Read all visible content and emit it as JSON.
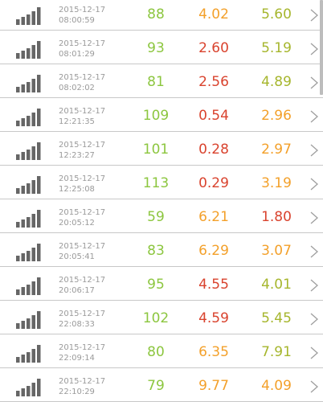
{
  "colors": {
    "green": "#8cc63f",
    "orange": "#f3a02a",
    "red": "#d9432e",
    "olive": "#a6b62d",
    "timestamp": "#9a9a9a",
    "signal": "#666666",
    "chevron": "#9e9e9e",
    "divider": "#c8c8c8"
  },
  "rows": [
    {
      "date": "2015-12-17",
      "time": "08:00:59",
      "v1": "88",
      "v2": "4.02",
      "v3": "5.60",
      "c1": "green",
      "c2": "orange",
      "c3": "olive",
      "icon": "signal-bars-icon"
    },
    {
      "date": "2015-12-17",
      "time": "08:01:29",
      "v1": "93",
      "v2": "2.60",
      "v3": "5.19",
      "c1": "green",
      "c2": "red",
      "c3": "olive",
      "icon": "signal-bars-icon"
    },
    {
      "date": "2015-12-17",
      "time": "08:02:02",
      "v1": "81",
      "v2": "2.56",
      "v3": "4.89",
      "c1": "green",
      "c2": "red",
      "c3": "olive",
      "icon": "signal-bars-icon"
    },
    {
      "date": "2015-12-17",
      "time": "12:21:35",
      "v1": "109",
      "v2": "0.54",
      "v3": "2.96",
      "c1": "green",
      "c2": "red",
      "c3": "orange",
      "icon": "signal-bars-icon"
    },
    {
      "date": "2015-12-17",
      "time": "12:23:27",
      "v1": "101",
      "v2": "0.28",
      "v3": "2.97",
      "c1": "green",
      "c2": "red",
      "c3": "orange",
      "icon": "signal-bars-icon"
    },
    {
      "date": "2015-12-17",
      "time": "12:25:08",
      "v1": "113",
      "v2": "0.29",
      "v3": "3.19",
      "c1": "green",
      "c2": "red",
      "c3": "orange",
      "icon": "signal-bars-icon"
    },
    {
      "date": "2015-12-17",
      "time": "20:05:12",
      "v1": "59",
      "v2": "6.21",
      "v3": "1.80",
      "c1": "green",
      "c2": "orange",
      "c3": "red",
      "icon": "signal-bars-icon"
    },
    {
      "date": "2015-12-17",
      "time": "20:05:41",
      "v1": "83",
      "v2": "6.29",
      "v3": "3.07",
      "c1": "green",
      "c2": "orange",
      "c3": "orange",
      "icon": "signal-bars-icon"
    },
    {
      "date": "2015-12-17",
      "time": "20:06:17",
      "v1": "95",
      "v2": "4.55",
      "v3": "4.01",
      "c1": "green",
      "c2": "red",
      "c3": "olive",
      "icon": "signal-bars-icon"
    },
    {
      "date": "2015-12-17",
      "time": "22:08:33",
      "v1": "102",
      "v2": "4.59",
      "v3": "5.45",
      "c1": "green",
      "c2": "red",
      "c3": "olive",
      "icon": "signal-bars-icon"
    },
    {
      "date": "2015-12-17",
      "time": "22:09:14",
      "v1": "80",
      "v2": "6.35",
      "v3": "7.91",
      "c1": "green",
      "c2": "orange",
      "c3": "olive",
      "icon": "signal-bars-icon"
    },
    {
      "date": "2015-12-17",
      "time": "22:10:29",
      "v1": "79",
      "v2": "9.77",
      "v3": "4.09",
      "c1": "green",
      "c2": "orange",
      "c3": "orange",
      "icon": "signal-bars-icon"
    }
  ]
}
